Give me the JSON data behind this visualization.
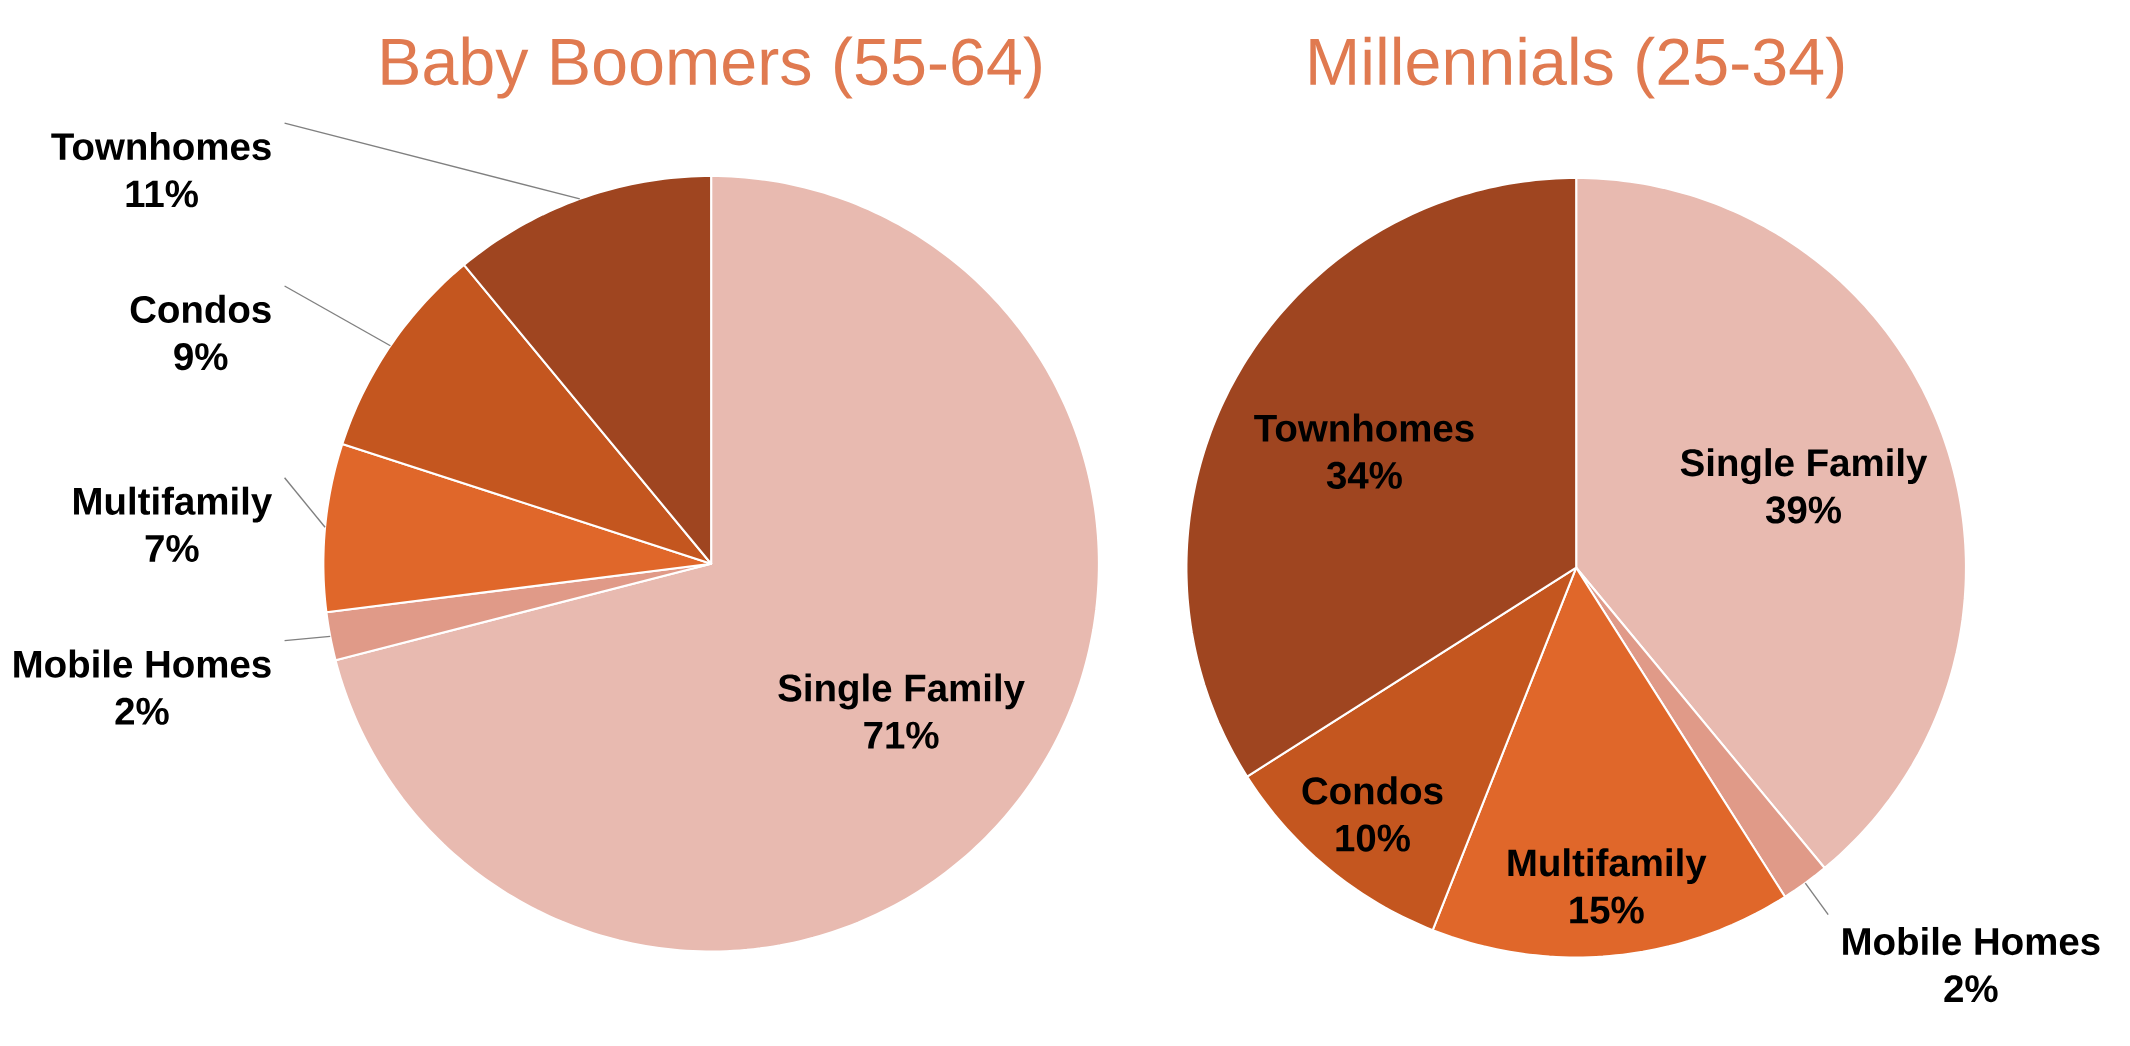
{
  "chart_data": [
    {
      "type": "pie",
      "title": "Baby Boomers (55-64)",
      "categories": [
        "Single Family",
        "Mobile Homes",
        "Multifamily",
        "Condos",
        "Townhomes"
      ],
      "values": [
        71,
        2,
        7,
        9,
        11
      ],
      "value_labels": [
        "71%",
        "2%",
        "7%",
        "9%",
        "11%"
      ],
      "colors": [
        "#e8bab0",
        "#e09a88",
        "#e0672a",
        "#c4561f",
        "#9f4520"
      ]
    },
    {
      "type": "pie",
      "title": "Millennials (25-34)",
      "categories": [
        "Single Family",
        "Mobile Homes",
        "Multifamily",
        "Condos",
        "Townhomes"
      ],
      "values": [
        39,
        2,
        15,
        10,
        34
      ],
      "value_labels": [
        "39%",
        "2%",
        "15%",
        "10%",
        "34%"
      ],
      "colors": [
        "#e8bab0",
        "#e09a88",
        "#e0672a",
        "#c4561f",
        "#9f4520"
      ]
    }
  ]
}
